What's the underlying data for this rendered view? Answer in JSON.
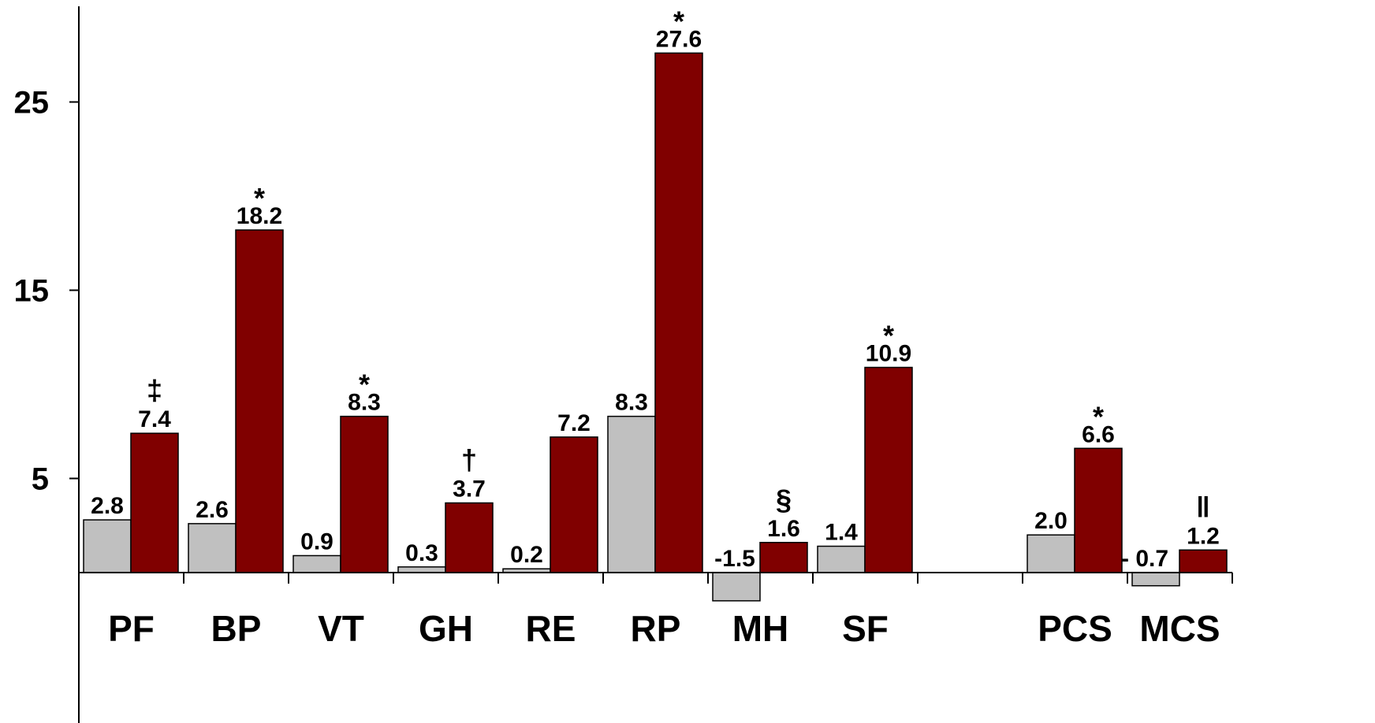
{
  "chart_data": {
    "type": "bar",
    "title": "",
    "xlabel": "",
    "ylabel": "",
    "ylim": [
      -1.5,
      29
    ],
    "yticks": [
      5,
      15,
      25
    ],
    "grid": false,
    "legend": "none",
    "categories": [
      "PF",
      "BP",
      "VT",
      "GH",
      "RE",
      "RP",
      "MH",
      "SF",
      "",
      "PCS",
      "MCS"
    ],
    "series": [
      {
        "color": "#c0c0c0",
        "values": [
          2.8,
          2.6,
          0.9,
          0.3,
          0.2,
          8.3,
          -1.5,
          1.4,
          null,
          2.0,
          -0.7
        ],
        "labels": [
          "2.8",
          "2.6",
          "0.9",
          "0.3",
          "0.2",
          "8.3",
          "-1.5",
          "1.4",
          "",
          "2.0",
          "- 0.7"
        ]
      },
      {
        "color": "#800000",
        "values": [
          7.4,
          18.2,
          8.3,
          3.7,
          7.2,
          27.6,
          1.6,
          10.9,
          null,
          6.6,
          1.2
        ],
        "labels": [
          "7.4",
          "18.2",
          "8.3",
          "3.7",
          "7.2",
          "27.6",
          "1.6",
          "10.9",
          "",
          "6.6",
          "1.2"
        ],
        "markers": [
          "‡",
          "*",
          "*",
          "†",
          "",
          "*",
          "§",
          "*",
          "",
          "*",
          "‖"
        ]
      }
    ]
  }
}
